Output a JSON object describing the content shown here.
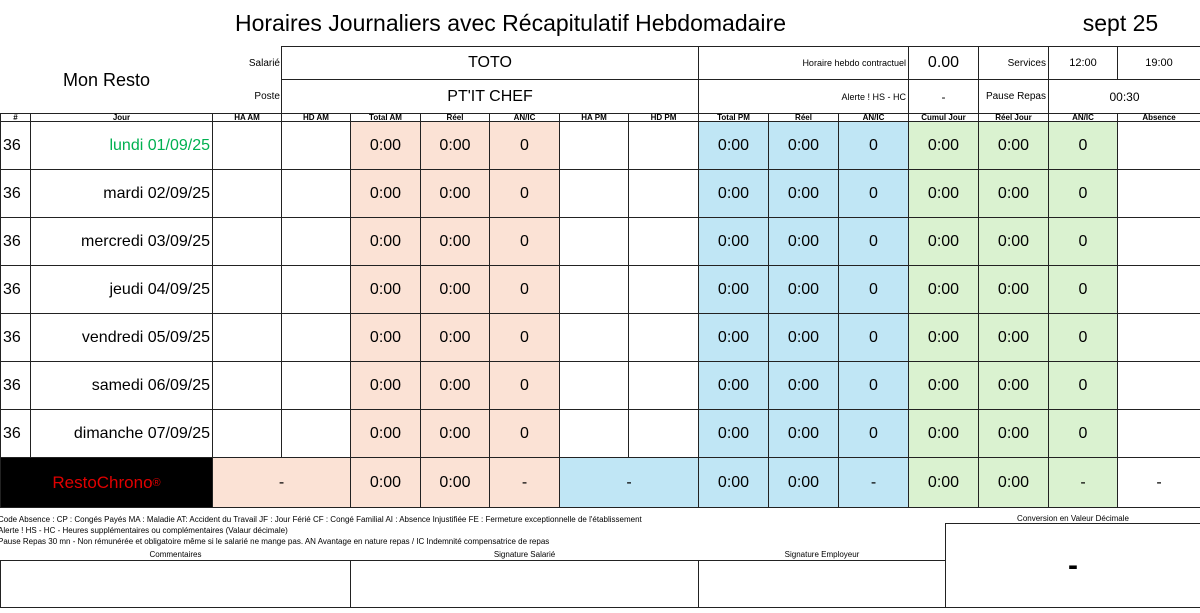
{
  "header": {
    "title": "Horaires Journaliers avec Récapitulatif Hebdomadaire",
    "month": "sept 25",
    "company": "Mon Resto",
    "info": {
      "salarie_label": "Salarié",
      "salarie": "TOTO",
      "poste_label": "Poste",
      "poste": "PT'IT CHEF",
      "horaire_label": "Horaire hebdo contractuel",
      "horaire": "0.00",
      "alerte_label": "Alerte ! HS - HC",
      "alerte": "-",
      "services_label": "Services",
      "service_start": "12:00",
      "service_end": "19:00",
      "pause_label": "Pause Repas",
      "pause": "00:30"
    }
  },
  "table": {
    "columns": [
      "#",
      "Jour",
      "HA AM",
      "HD AM",
      "Total AM",
      "Réel",
      "AN/IC",
      "HA PM",
      "HD PM",
      "Total PM",
      "Réel",
      "AN/IC",
      "Cumul Jour",
      "Réel Jour",
      "AN/IC",
      "Absence"
    ],
    "rows": [
      {
        "week": "36",
        "day": "lundi 01/09/25",
        "total_am": "0:00",
        "reel_am": "0:00",
        "anic_am": "0",
        "total_pm": "0:00",
        "reel_pm": "0:00",
        "anic_pm": "0",
        "cumul": "0:00",
        "reel_jour": "0:00",
        "anic_jour": "0"
      },
      {
        "week": "36",
        "day": "mardi 02/09/25",
        "total_am": "0:00",
        "reel_am": "0:00",
        "anic_am": "0",
        "total_pm": "0:00",
        "reel_pm": "0:00",
        "anic_pm": "0",
        "cumul": "0:00",
        "reel_jour": "0:00",
        "anic_jour": "0"
      },
      {
        "week": "36",
        "day": "mercredi 03/09/25",
        "total_am": "0:00",
        "reel_am": "0:00",
        "anic_am": "0",
        "total_pm": "0:00",
        "reel_pm": "0:00",
        "anic_pm": "0",
        "cumul": "0:00",
        "reel_jour": "0:00",
        "anic_jour": "0"
      },
      {
        "week": "36",
        "day": "jeudi 04/09/25",
        "total_am": "0:00",
        "reel_am": "0:00",
        "anic_am": "0",
        "total_pm": "0:00",
        "reel_pm": "0:00",
        "anic_pm": "0",
        "cumul": "0:00",
        "reel_jour": "0:00",
        "anic_jour": "0"
      },
      {
        "week": "36",
        "day": "vendredi 05/09/25",
        "total_am": "0:00",
        "reel_am": "0:00",
        "anic_am": "0",
        "total_pm": "0:00",
        "reel_pm": "0:00",
        "anic_pm": "0",
        "cumul": "0:00",
        "reel_jour": "0:00",
        "anic_jour": "0"
      },
      {
        "week": "36",
        "day": "samedi 06/09/25",
        "total_am": "0:00",
        "reel_am": "0:00",
        "anic_am": "0",
        "total_pm": "0:00",
        "reel_pm": "0:00",
        "anic_pm": "0",
        "cumul": "0:00",
        "reel_jour": "0:00",
        "anic_jour": "0"
      },
      {
        "week": "36",
        "day": "dimanche 07/09/25",
        "total_am": "0:00",
        "reel_am": "0:00",
        "anic_am": "0",
        "total_pm": "0:00",
        "reel_pm": "0:00",
        "anic_pm": "0",
        "cumul": "0:00",
        "reel_jour": "0:00",
        "anic_jour": "0"
      }
    ],
    "totals": {
      "brand": "RestoChrono",
      "brand_mark": "®",
      "values": [
        "-",
        "0:00",
        "0:00",
        "-",
        "-",
        "0:00",
        "0:00",
        "-",
        "0:00",
        "0:00",
        "-",
        "-"
      ]
    }
  },
  "footer": {
    "notes": [
      "Code Absence : CP : Congés Payés MA : Maladie AT: Accident du Travail JF : Jour Férié CF : Congé Familial AI : Absence Injustifiée FE : Fermeture exceptionnelle de l'établissement",
      "Alerte ! HS - HC - Heures supplémentaires ou complémentaires (Valaur décimale)",
      "Pause Repas 30 mn - Non rémunérée et obligatoire même si le salarié ne mange pas. AN Avantage en nature repas / IC Indemnité compensatrice de repas"
    ],
    "conversion_label": "Conversion en Valeur Décimale",
    "conversion": "-",
    "comments": "Commentaires",
    "signature_employee": "Signature Salarié",
    "signature_employer": "Signature Employeur"
  }
}
